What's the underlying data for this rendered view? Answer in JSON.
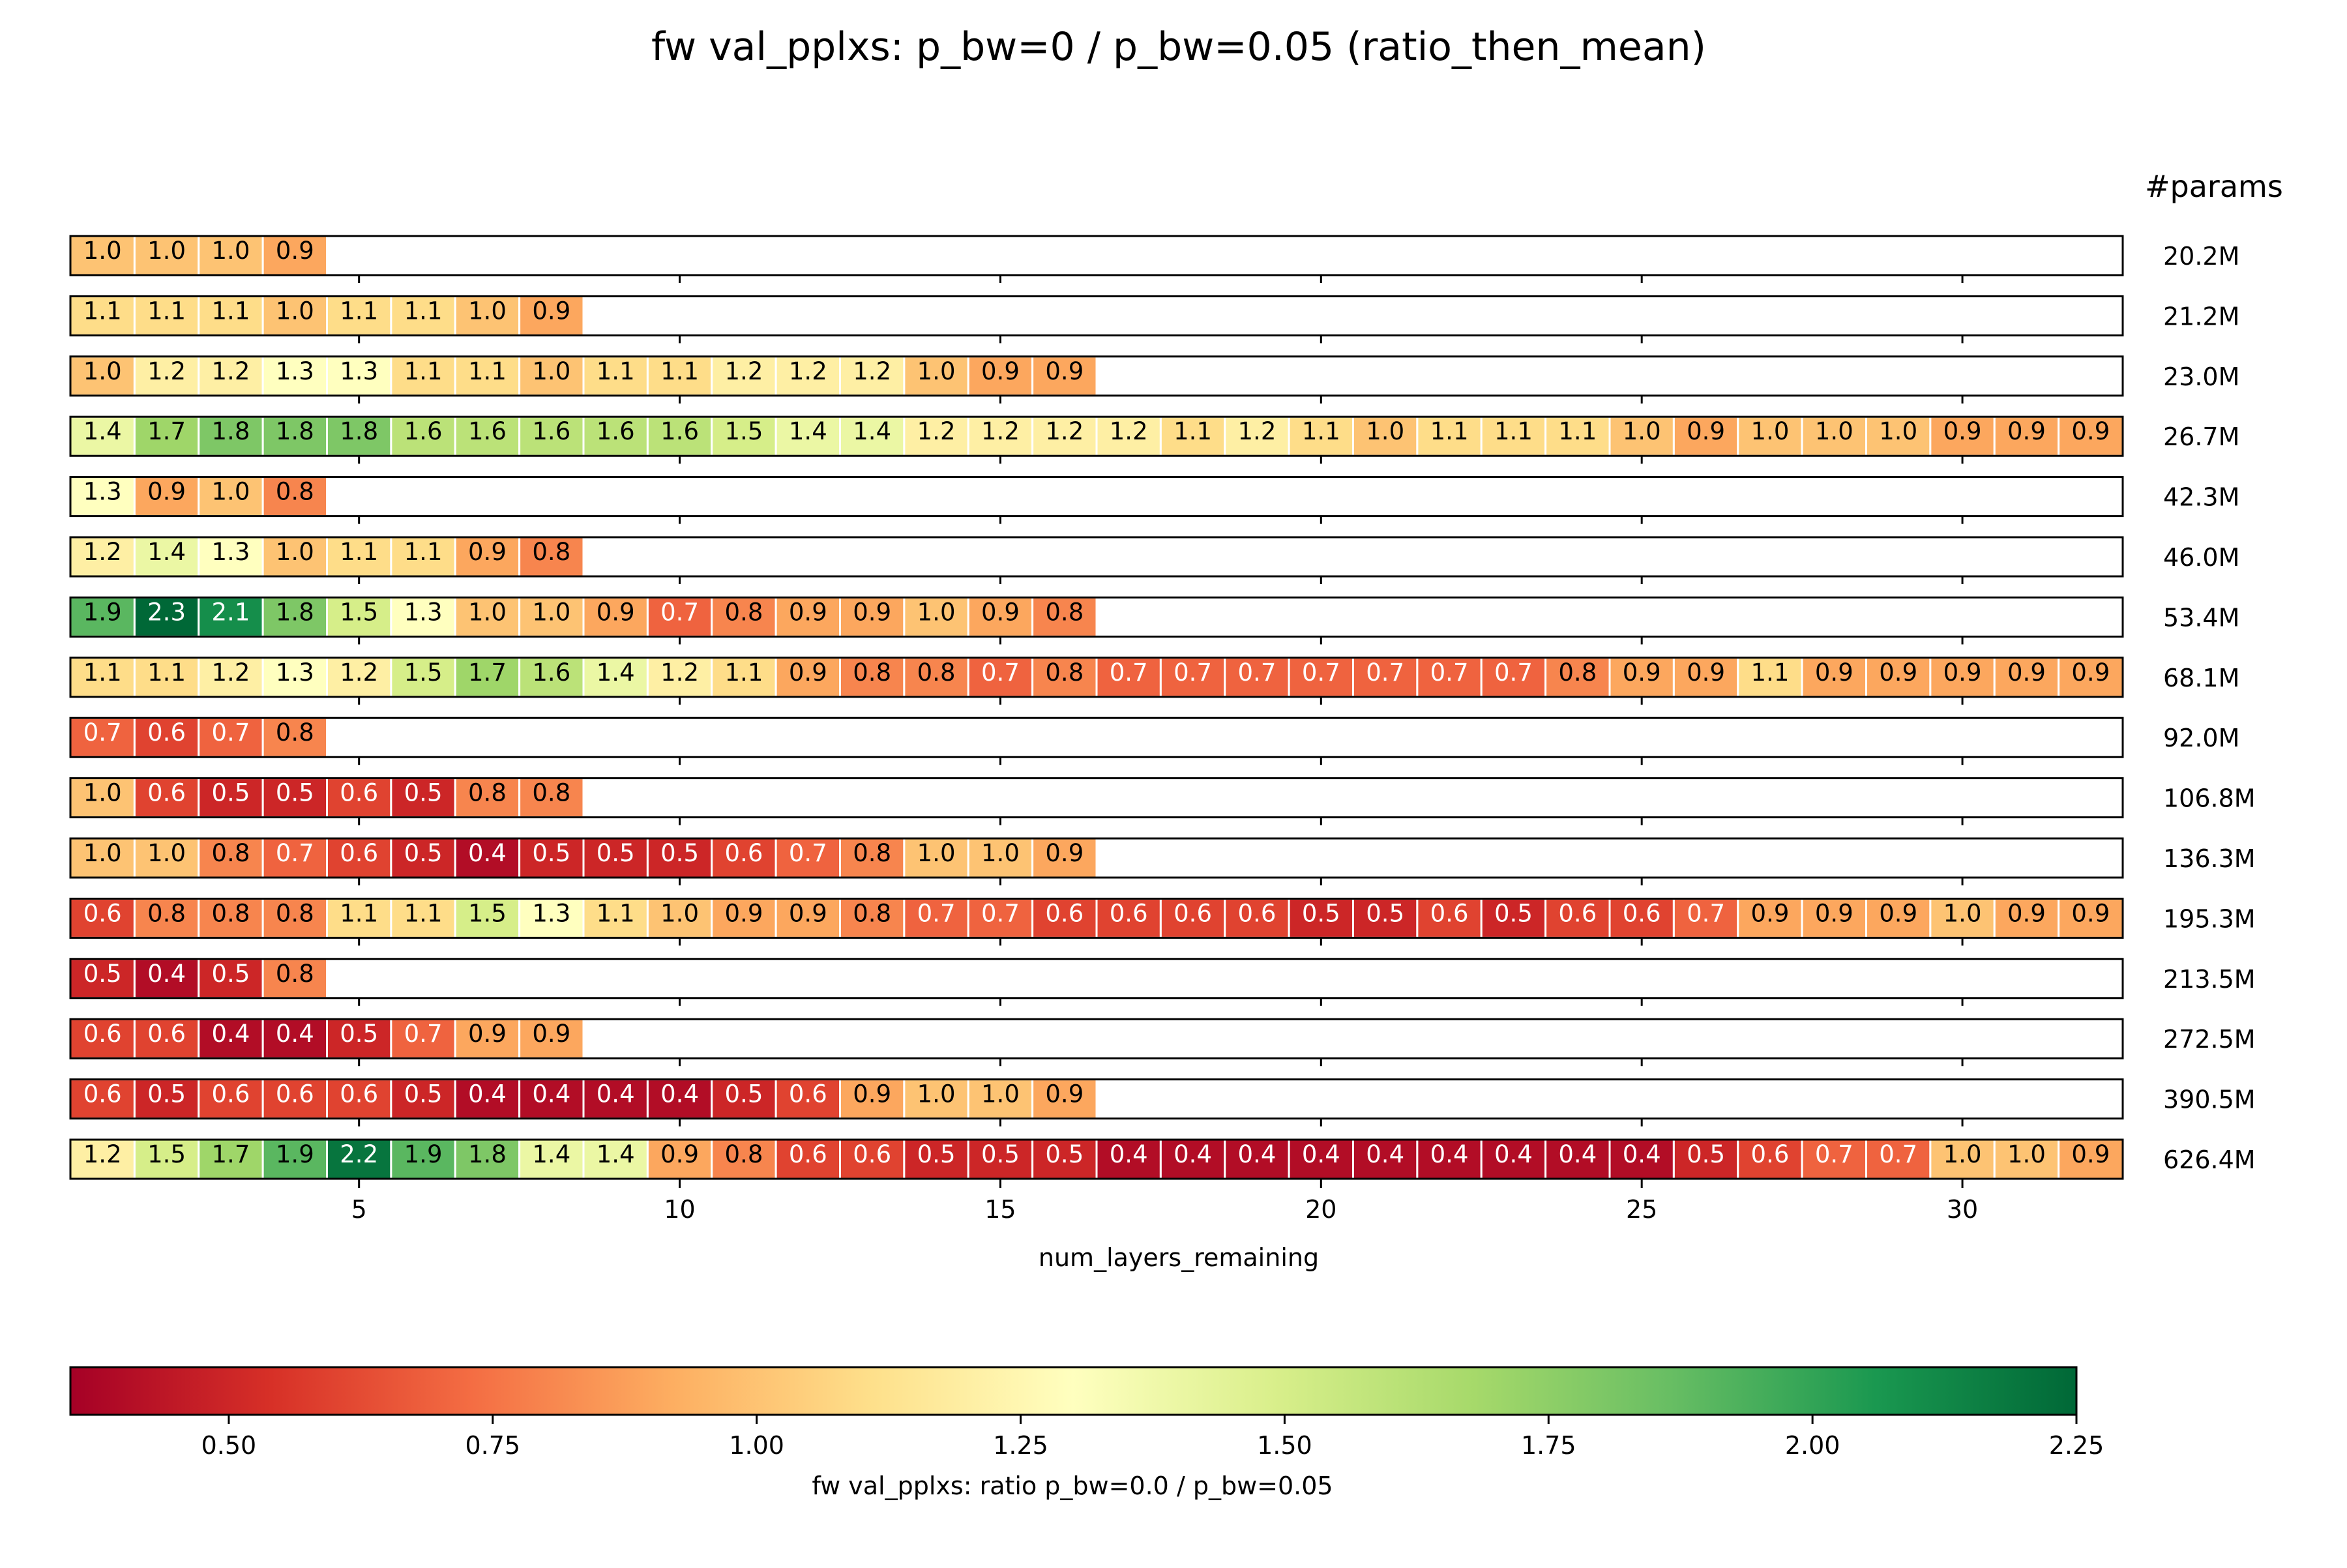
{
  "chart_data": {
    "type": "heatmap",
    "title": "fw val_pplxs: p_bw=0 / p_bw=0.05 (ratio_then_mean)",
    "xlabel": "num_layers_remaining",
    "x_range": [
      1,
      32
    ],
    "x_ticks": [
      5,
      10,
      15,
      20,
      25,
      30
    ],
    "right_header": "#params",
    "colormap": "RdYlGn",
    "colorbar": {
      "label": "fw val_pplxs: ratio p_bw=0.0 / p_bw=0.05",
      "range": [
        0.35,
        2.25
      ],
      "ticks": [
        0.5,
        0.75,
        1.0,
        1.25,
        1.5,
        1.75,
        2.0,
        2.25
      ],
      "tick_labels": [
        "0.50",
        "0.75",
        "1.00",
        "1.25",
        "1.50",
        "1.75",
        "2.00",
        "2.25"
      ],
      "stops": [
        "#a50026",
        "#d73027",
        "#f46d43",
        "#fdae61",
        "#fee08b",
        "#ffffbf",
        "#d9ef8b",
        "#a6d96a",
        "#66bd63",
        "#1a9850",
        "#006837"
      ]
    },
    "rows": [
      {
        "params": "20.2M",
        "values": [
          1.0,
          1.0,
          1.0,
          0.9
        ]
      },
      {
        "params": "21.2M",
        "values": [
          1.1,
          1.1,
          1.1,
          1.0,
          1.1,
          1.1,
          1.0,
          0.9
        ]
      },
      {
        "params": "23.0M",
        "values": [
          1.0,
          1.2,
          1.2,
          1.3,
          1.3,
          1.1,
          1.1,
          1.0,
          1.1,
          1.1,
          1.2,
          1.2,
          1.2,
          1.0,
          0.9,
          0.9
        ]
      },
      {
        "params": "26.7M",
        "values": [
          1.4,
          1.7,
          1.8,
          1.8,
          1.8,
          1.6,
          1.6,
          1.6,
          1.6,
          1.6,
          1.5,
          1.4,
          1.4,
          1.2,
          1.2,
          1.2,
          1.2,
          1.1,
          1.2,
          1.1,
          1.0,
          1.1,
          1.1,
          1.1,
          1.0,
          0.9,
          1.0,
          1.0,
          1.0,
          0.9,
          0.9,
          0.9
        ]
      },
      {
        "params": "42.3M",
        "values": [
          1.3,
          0.9,
          1.0,
          0.8
        ]
      },
      {
        "params": "46.0M",
        "values": [
          1.2,
          1.4,
          1.3,
          1.0,
          1.1,
          1.1,
          0.9,
          0.8
        ]
      },
      {
        "params": "53.4M",
        "values": [
          1.9,
          2.3,
          2.1,
          1.8,
          1.5,
          1.3,
          1.0,
          1.0,
          0.9,
          0.7,
          0.8,
          0.9,
          0.9,
          1.0,
          0.9,
          0.8
        ]
      },
      {
        "params": "68.1M",
        "values": [
          1.1,
          1.1,
          1.2,
          1.3,
          1.2,
          1.5,
          1.7,
          1.6,
          1.4,
          1.2,
          1.1,
          0.9,
          0.8,
          0.8,
          0.7,
          0.8,
          0.7,
          0.7,
          0.7,
          0.7,
          0.7,
          0.7,
          0.7,
          0.8,
          0.9,
          0.9,
          1.1,
          0.9,
          0.9,
          0.9,
          0.9,
          0.9
        ]
      },
      {
        "params": "92.0M",
        "values": [
          0.7,
          0.6,
          0.7,
          0.8
        ]
      },
      {
        "params": "106.8M",
        "values": [
          1.0,
          0.6,
          0.5,
          0.5,
          0.6,
          0.5,
          0.8,
          0.8
        ]
      },
      {
        "params": "136.3M",
        "values": [
          1.0,
          1.0,
          0.8,
          0.7,
          0.6,
          0.5,
          0.4,
          0.5,
          0.5,
          0.5,
          0.6,
          0.7,
          0.8,
          1.0,
          1.0,
          0.9
        ]
      },
      {
        "params": "195.3M",
        "values": [
          0.6,
          0.8,
          0.8,
          0.8,
          1.1,
          1.1,
          1.5,
          1.3,
          1.1,
          1.0,
          0.9,
          0.9,
          0.8,
          0.7,
          0.7,
          0.6,
          0.6,
          0.6,
          0.6,
          0.5,
          0.5,
          0.6,
          0.5,
          0.6,
          0.6,
          0.7,
          0.9,
          0.9,
          0.9,
          1.0,
          0.9,
          0.9
        ]
      },
      {
        "params": "213.5M",
        "values": [
          0.5,
          0.4,
          0.5,
          0.8
        ]
      },
      {
        "params": "272.5M",
        "values": [
          0.6,
          0.6,
          0.4,
          0.4,
          0.5,
          0.7,
          0.9,
          0.9
        ]
      },
      {
        "params": "390.5M",
        "values": [
          0.6,
          0.5,
          0.6,
          0.6,
          0.6,
          0.5,
          0.4,
          0.4,
          0.4,
          0.4,
          0.5,
          0.6,
          0.9,
          1.0,
          1.0,
          0.9
        ]
      },
      {
        "params": "626.4M",
        "values": [
          1.2,
          1.5,
          1.7,
          1.9,
          2.2,
          1.9,
          1.8,
          1.4,
          1.4,
          0.9,
          0.8,
          0.6,
          0.6,
          0.5,
          0.5,
          0.5,
          0.4,
          0.4,
          0.4,
          0.4,
          0.4,
          0.4,
          0.4,
          0.4,
          0.4,
          0.5,
          0.6,
          0.7,
          0.7,
          1.0,
          1.0,
          0.9
        ]
      }
    ]
  }
}
